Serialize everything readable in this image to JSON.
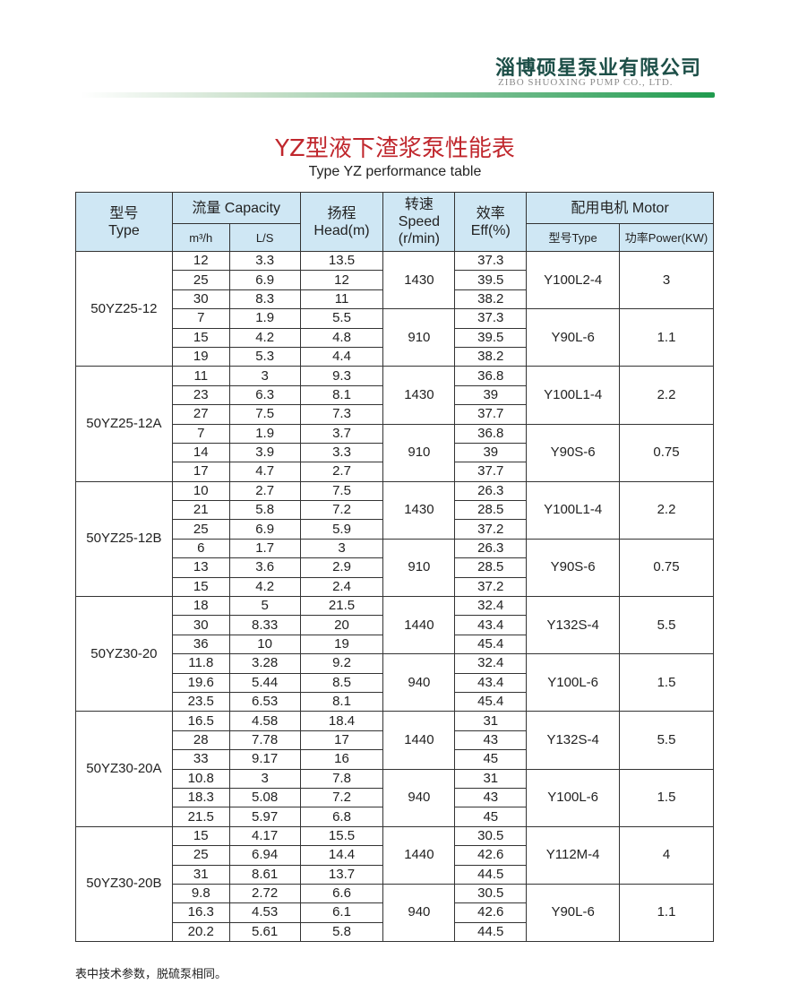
{
  "logo": {
    "cn": "淄博硕星泵业有限公司",
    "en": "ZIBO SHUOXING PUMP CO., LTD."
  },
  "title": "YZ型液下渣浆泵性能表",
  "subtitle": "Type YZ performance table",
  "headers": {
    "type": [
      "型号",
      "Type"
    ],
    "capacity": "流量 Capacity",
    "m3h": "m³/h",
    "ls": "L/S",
    "head": [
      "扬程",
      "Head(m)"
    ],
    "speed": [
      "转速",
      "Speed",
      "(r/min)"
    ],
    "eff": [
      "效率",
      "Eff(%)"
    ],
    "motor": "配用电机 Motor",
    "motor_type": "型号Type",
    "power": "功率Power(KW)"
  },
  "models": [
    {
      "name": "50YZ25-12",
      "groups": [
        {
          "speed": "1430",
          "motor": "Y100L2-4",
          "power": "3",
          "rows": [
            [
              "12",
              "3.3",
              "13.5",
              "37.3"
            ],
            [
              "25",
              "6.9",
              "12",
              "39.5"
            ],
            [
              "30",
              "8.3",
              "11",
              "38.2"
            ]
          ]
        },
        {
          "speed": "910",
          "motor": "Y90L-6",
          "power": "1.1",
          "rows": [
            [
              "7",
              "1.9",
              "5.5",
              "37.3"
            ],
            [
              "15",
              "4.2",
              "4.8",
              "39.5"
            ],
            [
              "19",
              "5.3",
              "4.4",
              "38.2"
            ]
          ]
        }
      ]
    },
    {
      "name": "50YZ25-12A",
      "groups": [
        {
          "speed": "1430",
          "motor": "Y100L1-4",
          "power": "2.2",
          "rows": [
            [
              "11",
              "3",
              "9.3",
              "36.8"
            ],
            [
              "23",
              "6.3",
              "8.1",
              "39"
            ],
            [
              "27",
              "7.5",
              "7.3",
              "37.7"
            ]
          ]
        },
        {
          "speed": "910",
          "motor": "Y90S-6",
          "power": "0.75",
          "rows": [
            [
              "7",
              "1.9",
              "3.7",
              "36.8"
            ],
            [
              "14",
              "3.9",
              "3.3",
              "39"
            ],
            [
              "17",
              "4.7",
              "2.7",
              "37.7"
            ]
          ]
        }
      ]
    },
    {
      "name": "50YZ25-12B",
      "groups": [
        {
          "speed": "1430",
          "motor": "Y100L1-4",
          "power": "2.2",
          "rows": [
            [
              "10",
              "2.7",
              "7.5",
              "26.3"
            ],
            [
              "21",
              "5.8",
              "7.2",
              "28.5"
            ],
            [
              "25",
              "6.9",
              "5.9",
              "37.2"
            ]
          ]
        },
        {
          "speed": "910",
          "motor": "Y90S-6",
          "power": "0.75",
          "rows": [
            [
              "6",
              "1.7",
              "3",
              "26.3"
            ],
            [
              "13",
              "3.6",
              "2.9",
              "28.5"
            ],
            [
              "15",
              "4.2",
              "2.4",
              "37.2"
            ]
          ]
        }
      ]
    },
    {
      "name": "50YZ30-20",
      "groups": [
        {
          "speed": "1440",
          "motor": "Y132S-4",
          "power": "5.5",
          "rows": [
            [
              "18",
              "5",
              "21.5",
              "32.4"
            ],
            [
              "30",
              "8.33",
              "20",
              "43.4"
            ],
            [
              "36",
              "10",
              "19",
              "45.4"
            ]
          ]
        },
        {
          "speed": "940",
          "motor": "Y100L-6",
          "power": "1.5",
          "rows": [
            [
              "11.8",
              "3.28",
              "9.2",
              "32.4"
            ],
            [
              "19.6",
              "5.44",
              "8.5",
              "43.4"
            ],
            [
              "23.5",
              "6.53",
              "8.1",
              "45.4"
            ]
          ]
        }
      ]
    },
    {
      "name": "50YZ30-20A",
      "groups": [
        {
          "speed": "1440",
          "motor": "Y132S-4",
          "power": "5.5",
          "rows": [
            [
              "16.5",
              "4.58",
              "18.4",
              "31"
            ],
            [
              "28",
              "7.78",
              "17",
              "43"
            ],
            [
              "33",
              "9.17",
              "16",
              "45"
            ]
          ]
        },
        {
          "speed": "940",
          "motor": "Y100L-6",
          "power": "1.5",
          "rows": [
            [
              "10.8",
              "3",
              "7.8",
              "31"
            ],
            [
              "18.3",
              "5.08",
              "7.2",
              "43"
            ],
            [
              "21.5",
              "5.97",
              "6.8",
              "45"
            ]
          ]
        }
      ]
    },
    {
      "name": "50YZ30-20B",
      "groups": [
        {
          "speed": "1440",
          "motor": "Y112M-4",
          "power": "4",
          "rows": [
            [
              "15",
              "4.17",
              "15.5",
              "30.5"
            ],
            [
              "25",
              "6.94",
              "14.4",
              "42.6"
            ],
            [
              "31",
              "8.61",
              "13.7",
              "44.5"
            ]
          ]
        },
        {
          "speed": "940",
          "motor": "Y90L-6",
          "power": "1.1",
          "rows": [
            [
              "9.8",
              "2.72",
              "6.6",
              "30.5"
            ],
            [
              "16.3",
              "4.53",
              "6.1",
              "42.6"
            ],
            [
              "20.2",
              "5.61",
              "5.8",
              "44.5"
            ]
          ]
        }
      ]
    }
  ],
  "note": "表中技术参数，脱硫泵相同。"
}
